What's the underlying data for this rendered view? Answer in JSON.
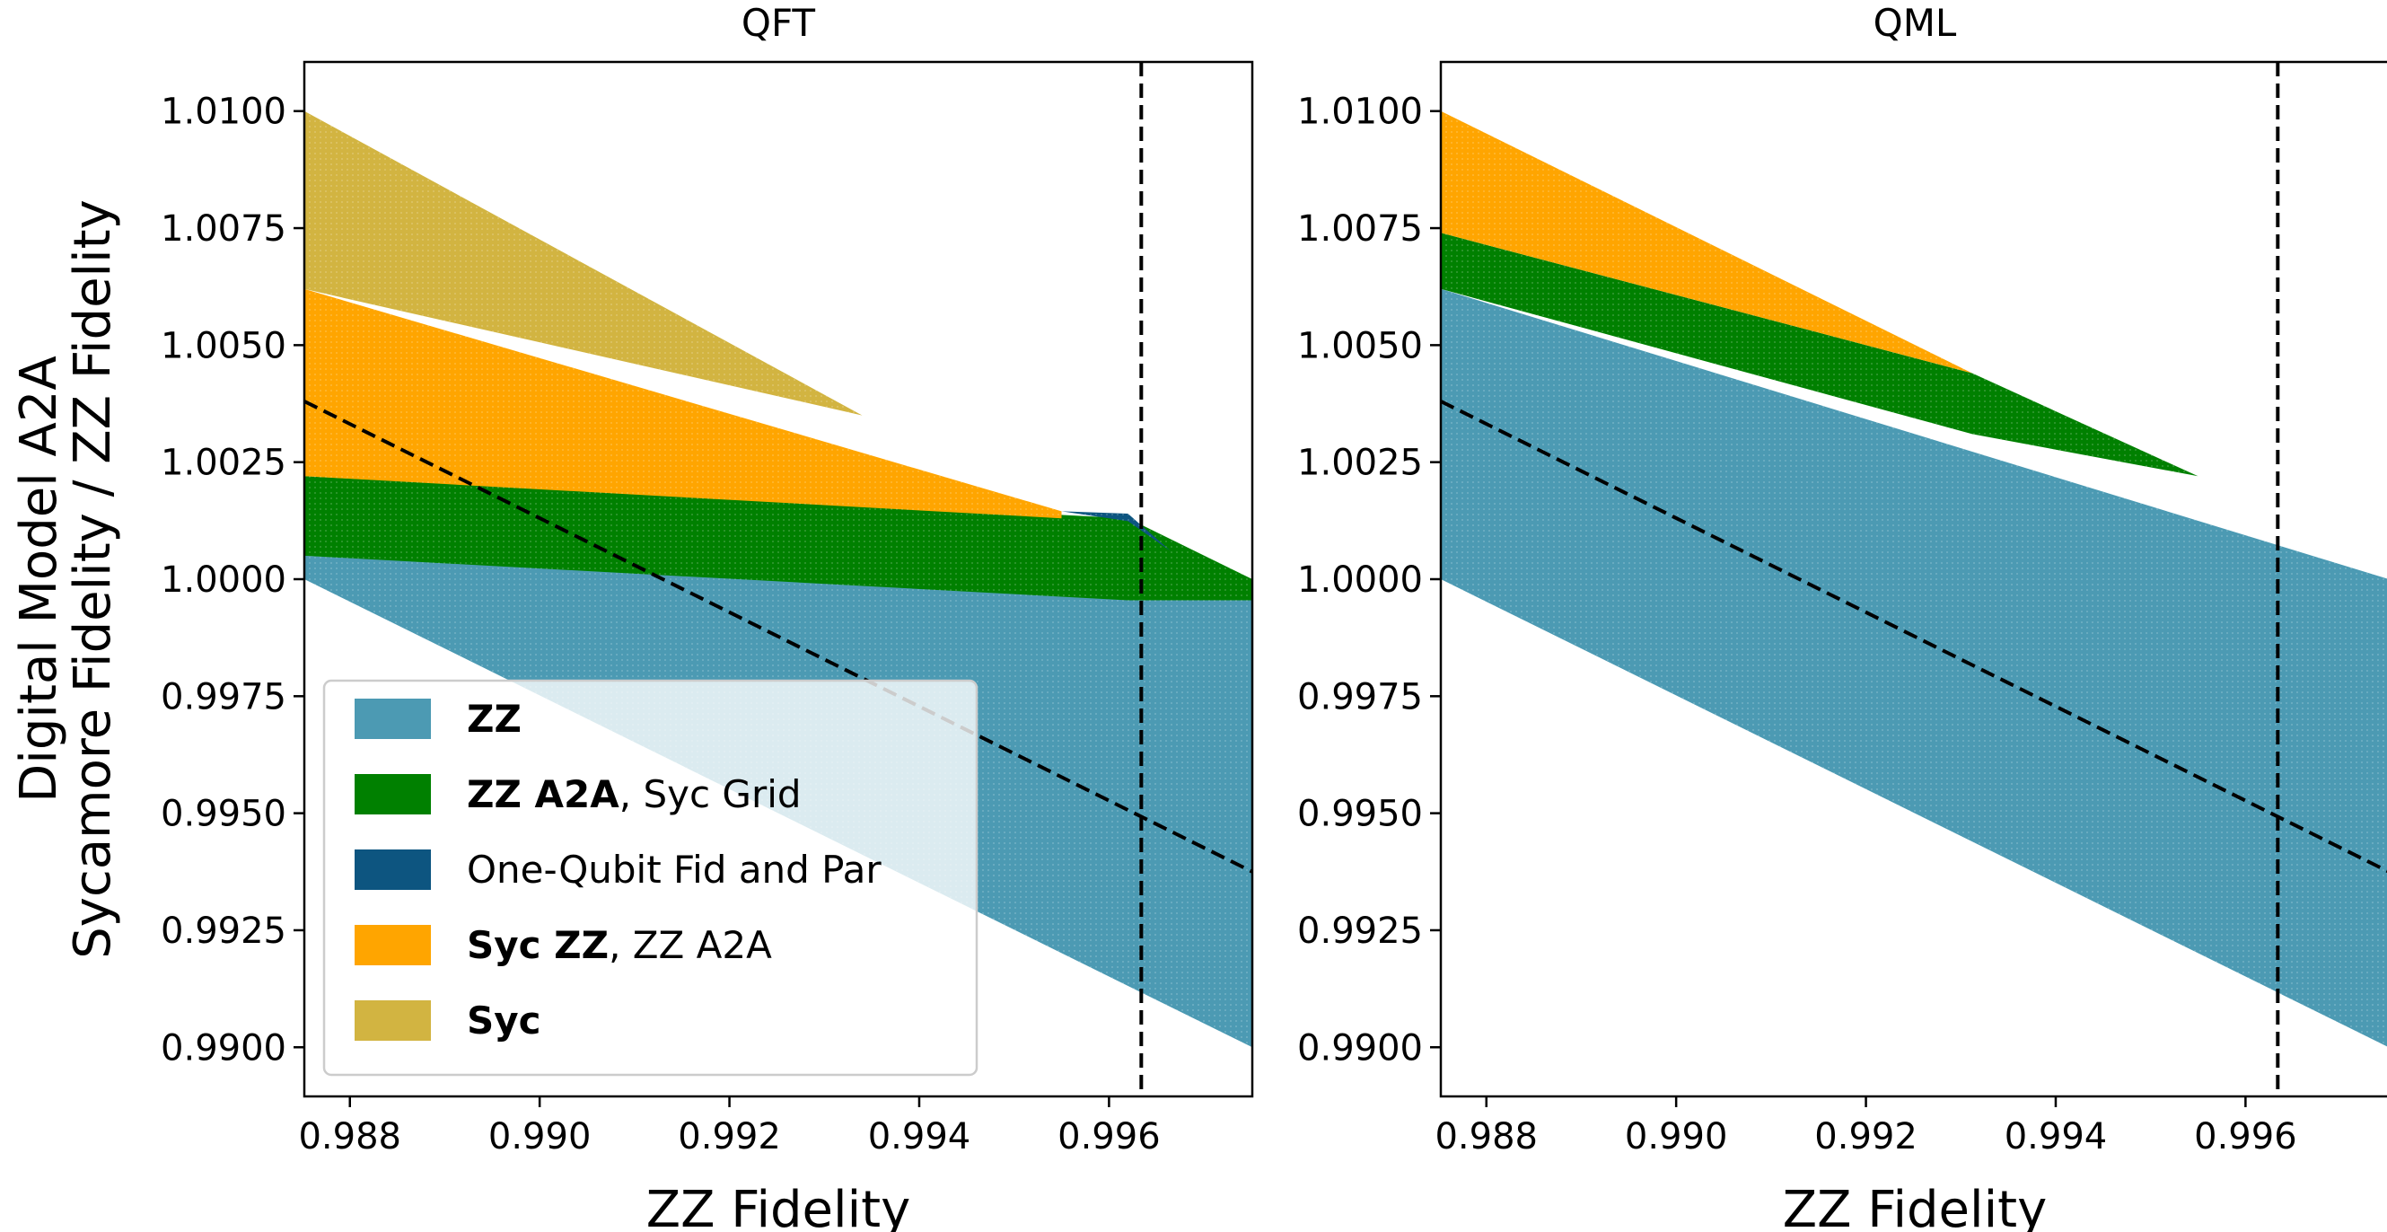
{
  "chart_data": [
    {
      "type": "area",
      "title": "QFT",
      "xlabel": "ZZ Fidelity",
      "ylabel": [
        "Digital Model A2A",
        "Sycamore Fidelity / ZZ Fidelity"
      ],
      "xlim": [
        0.98752,
        0.99751
      ],
      "ylim": [
        0.98895,
        1.01105
      ],
      "xticks": [
        0.988,
        0.99,
        0.992,
        0.994,
        0.996
      ],
      "xtick_labels": [
        "0.988",
        "0.990",
        "0.992",
        "0.994",
        "0.996"
      ],
      "yticks": [
        0.99,
        0.9925,
        0.995,
        0.9975,
        1.0,
        1.0025,
        1.005,
        1.0075,
        1.01
      ],
      "ytick_labels": [
        "0.9900",
        "0.9925",
        "0.9950",
        "0.9975",
        "1.0000",
        "1.0025",
        "1.0050",
        "1.0075",
        "1.0100"
      ],
      "vline_x": 0.99634,
      "dashed_line": {
        "x": [
          0.98752,
          0.99751
        ],
        "y": [
          1.0038,
          0.99375
        ]
      },
      "series": [
        {
          "name": "ZZ",
          "color": "#4c9ab3",
          "x": [
            0.98752,
            0.99751
          ],
          "lower": [
            1.0,
            0.99
          ],
          "upper": [
            1.0005,
            0.99955
          ]
        },
        {
          "name": "ZZ A2A, Syc Grid",
          "color": "#008000",
          "x": [
            0.98752,
            0.9962,
            0.99751
          ],
          "lower": [
            1.0005,
            0.99955,
            0.99955
          ],
          "upper": [
            1.0022,
            1.0013,
            1.0
          ]
        },
        {
          "name": "One-Qubit Fid and Par",
          "color": "#0d5580",
          "x": [
            0.9955,
            0.9962,
            0.99665
          ],
          "lower": [
            1.00145,
            1.00124,
            1.0006
          ],
          "upper": [
            1.00145,
            1.0014,
            1.0006
          ]
        },
        {
          "name": "Syc ZZ, ZZ A2A",
          "color": "#ffa500",
          "x": [
            0.98752,
            0.9955
          ],
          "lower": [
            1.0022,
            1.0013
          ],
          "upper": [
            1.0062,
            1.00145
          ]
        },
        {
          "name": "Syc",
          "color": "#d2b441",
          "x": [
            0.98752,
            0.9934
          ],
          "lower": [
            1.0062,
            1.0035
          ],
          "upper": [
            1.01,
            1.0035
          ]
        }
      ],
      "legend": {
        "location": "lower-left",
        "entries": [
          {
            "bold": "ZZ",
            "rest": "",
            "color": "#4c9ab3"
          },
          {
            "bold": "ZZ A2A",
            "rest": ", Syc Grid",
            "color": "#008000"
          },
          {
            "bold": "",
            "rest": "One-Qubit Fid and Par",
            "color": "#0d5580"
          },
          {
            "bold": "Syc ZZ",
            "rest": ", ZZ A2A",
            "color": "#ffa500"
          },
          {
            "bold": "Syc",
            "rest": "",
            "color": "#d2b441"
          }
        ]
      }
    },
    {
      "type": "area",
      "title": "QML",
      "xlabel": "ZZ Fidelity",
      "ylabel": "",
      "xlim": [
        0.98752,
        0.99751
      ],
      "ylim": [
        0.98895,
        1.01105
      ],
      "xticks": [
        0.988,
        0.99,
        0.992,
        0.994,
        0.996
      ],
      "xtick_labels": [
        "0.988",
        "0.990",
        "0.992",
        "0.994",
        "0.996"
      ],
      "yticks": [
        0.99,
        0.9925,
        0.995,
        0.9975,
        1.0,
        1.0025,
        1.005,
        1.0075,
        1.01
      ],
      "ytick_labels": [
        "0.9900",
        "0.9925",
        "0.9950",
        "0.9975",
        "1.0000",
        "1.0025",
        "1.0050",
        "1.0075",
        "1.0100"
      ],
      "vline_x": 0.99634,
      "dashed_line": {
        "x": [
          0.98752,
          0.99751
        ],
        "y": [
          1.0038,
          0.99375
        ]
      },
      "series": [
        {
          "name": "ZZ",
          "color": "#4c9ab3",
          "x": [
            0.98752,
            0.99751
          ],
          "lower": [
            1.0,
            0.99
          ],
          "upper": [
            1.0062,
            1.0
          ]
        },
        {
          "name": "ZZ A2A, Syc Grid",
          "color": "#008000",
          "x": [
            0.98752,
            0.99312,
            0.9955
          ],
          "lower": [
            1.0062,
            1.0031,
            1.0022
          ],
          "upper": [
            1.0074,
            1.0044,
            1.0022
          ]
        },
        {
          "name": "Syc ZZ, ZZ A2A",
          "color": "#ffa500",
          "x": [
            0.98752,
            0.99312
          ],
          "lower": [
            1.0074,
            1.0044
          ],
          "upper": [
            1.01,
            1.0044
          ]
        }
      ]
    }
  ]
}
